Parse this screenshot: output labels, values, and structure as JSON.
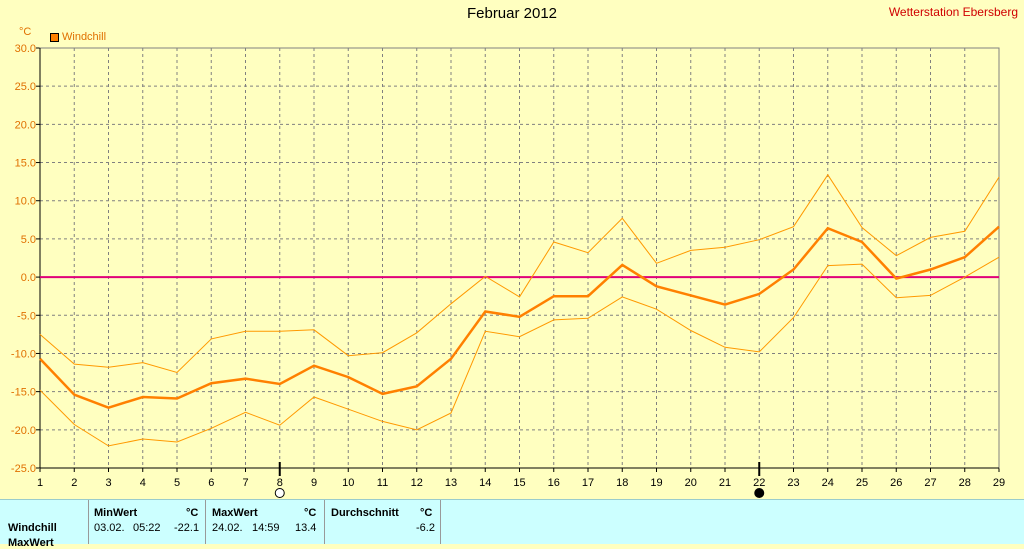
{
  "title": "Februar 2012",
  "station": "Wetterstation Ebersberg",
  "chart_data": {
    "type": "line",
    "title": "Februar 2012",
    "ylabel": "°C",
    "ylim": [
      -25,
      30
    ],
    "xlim": [
      1,
      29
    ],
    "grid": true,
    "legend": "top-left",
    "x": [
      1,
      2,
      3,
      4,
      5,
      6,
      7,
      8,
      9,
      10,
      11,
      12,
      13,
      14,
      15,
      16,
      17,
      18,
      19,
      20,
      21,
      22,
      23,
      24,
      25,
      26,
      27,
      28,
      29
    ],
    "yticks": [
      "30.0",
      "25.0",
      "20.0",
      "15.0",
      "10.0",
      "5.0",
      "0.0",
      "-5.0",
      "-10.0",
      "-15.0",
      "-20.0",
      "-25.0"
    ],
    "series": [
      {
        "name": "Windchill",
        "role": "average",
        "values": [
          -10.7,
          -15.4,
          -17.1,
          -15.7,
          -15.9,
          -13.9,
          -13.3,
          -14.0,
          -11.6,
          -13.1,
          -15.3,
          -14.3,
          -10.7,
          -4.5,
          -5.2,
          -2.5,
          -2.5,
          1.6,
          -1.2,
          -2.4,
          -3.6,
          -2.2,
          1.0,
          6.4,
          4.6,
          -0.2,
          1.0,
          2.6,
          6.6
        ]
      },
      {
        "name": "",
        "role": "max",
        "values": [
          -7.5,
          -11.4,
          -11.8,
          -11.2,
          -12.5,
          -8.1,
          -7.1,
          -7.1,
          -6.9,
          -10.3,
          -9.9,
          -7.3,
          -3.5,
          0.1,
          -2.6,
          4.6,
          3.2,
          7.7,
          1.8,
          3.5,
          3.9,
          4.9,
          6.6,
          13.4,
          6.5,
          2.8,
          5.2,
          6.0,
          13.1
        ]
      },
      {
        "name": "",
        "role": "min",
        "values": [
          -14.8,
          -19.3,
          -22.1,
          -21.2,
          -21.6,
          -19.8,
          -17.7,
          -19.4,
          -15.7,
          -17.3,
          -18.9,
          -20.0,
          -17.8,
          -7.1,
          -7.8,
          -5.6,
          -5.4,
          -2.6,
          -4.2,
          -7.0,
          -9.2,
          -9.8,
          -5.3,
          1.5,
          1.7,
          -2.7,
          -2.4,
          0.0,
          2.6
        ]
      }
    ],
    "markers": [
      {
        "x": 8,
        "symbol": "full-moon-icon"
      },
      {
        "x": 22,
        "symbol": "new-moon-icon"
      }
    ],
    "colors": {
      "main": "#ff8000",
      "band": "#ff9900",
      "zero": "#e0007a",
      "grid": "#808080"
    }
  },
  "stats": {
    "row_label": "Windchill",
    "row_label_2": "MaxWert",
    "min": {
      "header": "MinWert",
      "unit": "°C",
      "date": "03.02.",
      "time": "05:22",
      "value": "-22.1"
    },
    "max": {
      "header": "MaxWert",
      "unit": "°C",
      "date": "24.02.",
      "time": "14:59",
      "value": "13.4"
    },
    "avg": {
      "header": "Durchschnitt",
      "unit": "°C",
      "value": "-6.2"
    }
  }
}
